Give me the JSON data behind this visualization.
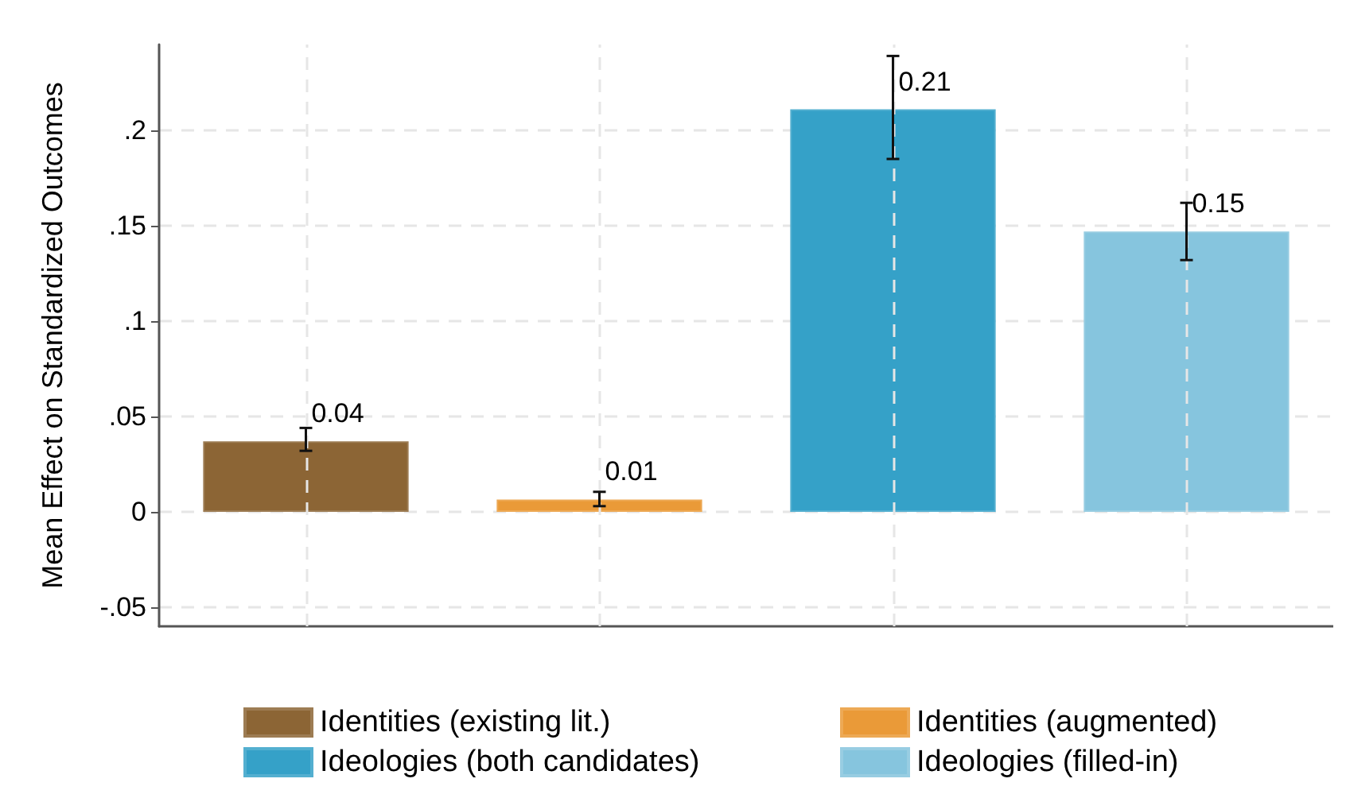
{
  "chart_data": {
    "type": "bar",
    "ylabel": "Mean Effect on Standardized Outcomes",
    "categories": [
      null,
      null,
      null,
      null
    ],
    "series": [
      {
        "name": "Identities (existing lit.)",
        "color": "#8c6535",
        "values": [
          0.037,
          null,
          null,
          null
        ],
        "errors": [
          [
            0.032,
            0.044
          ],
          null,
          null,
          null
        ],
        "value_labels": [
          "0.04",
          null,
          null,
          null
        ]
      },
      {
        "name": "Identities (augmented)",
        "color": "#ea9a38",
        "values": [
          null,
          0.0065,
          null,
          null
        ],
        "errors": [
          null,
          [
            0.003,
            0.0105
          ],
          null,
          null
        ],
        "value_labels": [
          null,
          "0.01",
          null,
          null
        ]
      },
      {
        "name": "Ideologies (both candidates)",
        "color": "#35a1c8",
        "values": [
          null,
          null,
          0.211,
          null
        ],
        "errors": [
          null,
          null,
          [
            0.185,
            0.239
          ],
          null
        ],
        "value_labels": [
          null,
          null,
          "0.21",
          null
        ]
      },
      {
        "name": "Ideologies (filled-in)",
        "color": "#86c5de",
        "values": [
          null,
          null,
          null,
          0.147
        ],
        "errors": [
          null,
          null,
          null,
          [
            0.132,
            0.162
          ]
        ],
        "value_labels": [
          null,
          null,
          null,
          "0.15"
        ]
      }
    ],
    "ylim": [
      -0.06,
      0.245
    ],
    "yticks": [
      {
        "value": -0.05,
        "label": "-.05"
      },
      0,
      {
        "value": 0.05,
        "label": ".05"
      },
      {
        "value": 0.1,
        "label": ".1"
      },
      {
        "value": 0.15,
        "label": ".15"
      },
      {
        "value": 0.2,
        "label": ".2"
      }
    ],
    "grid": true,
    "legend": "bottom"
  }
}
